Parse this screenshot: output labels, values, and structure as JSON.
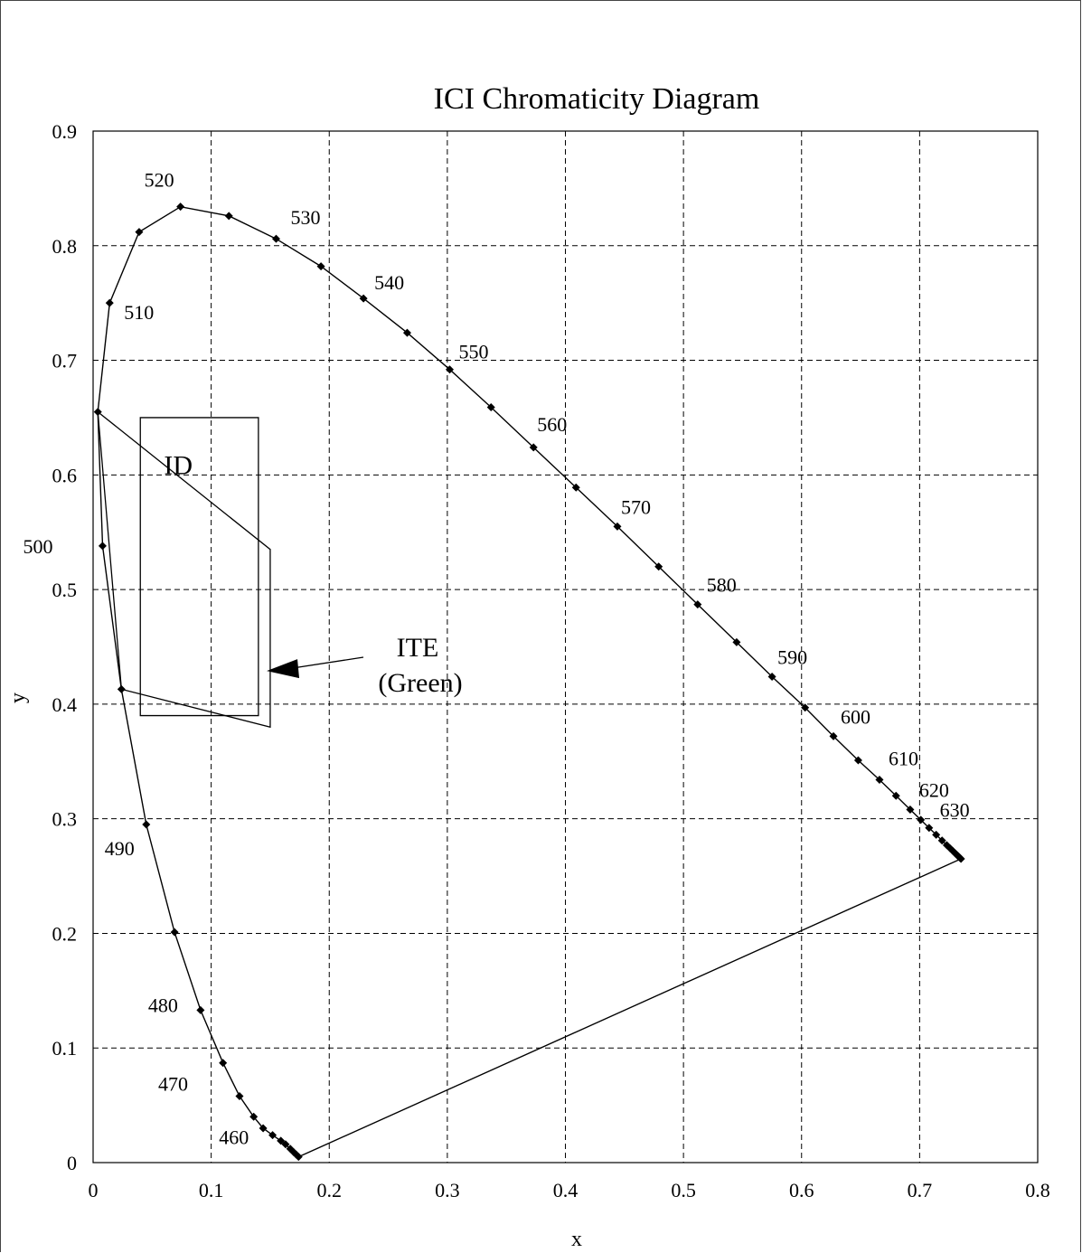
{
  "chart_data": {
    "type": "scatter",
    "title": "ICI Chromaticity Diagram",
    "xlabel": "x",
    "ylabel": "y",
    "xlim": [
      0,
      0.8
    ],
    "ylim": [
      0,
      0.9
    ],
    "xticks": [
      "0",
      "0.1",
      "0.2",
      "0.3",
      "0.4",
      "0.5",
      "0.6",
      "0.7",
      "0.8"
    ],
    "yticks": [
      "0",
      "0.1",
      "0.2",
      "0.3",
      "0.4",
      "0.5",
      "0.6",
      "0.7",
      "0.8",
      "0.9"
    ],
    "grid": true,
    "spectral_locus": [
      [
        0.174,
        0.005
      ],
      [
        0.172,
        0.007
      ],
      [
        0.17,
        0.009
      ],
      [
        0.167,
        0.012
      ],
      [
        0.163,
        0.016
      ],
      [
        0.159,
        0.019
      ],
      [
        0.152,
        0.024
      ],
      [
        0.144,
        0.03
      ],
      [
        0.136,
        0.04
      ],
      [
        0.124,
        0.058
      ],
      [
        0.11,
        0.087
      ],
      [
        0.091,
        0.133
      ],
      [
        0.069,
        0.201
      ],
      [
        0.045,
        0.295
      ],
      [
        0.024,
        0.413
      ],
      [
        0.008,
        0.538
      ],
      [
        0.004,
        0.655
      ],
      [
        0.014,
        0.75
      ],
      [
        0.039,
        0.812
      ],
      [
        0.074,
        0.834
      ],
      [
        0.115,
        0.826
      ],
      [
        0.155,
        0.806
      ],
      [
        0.193,
        0.782
      ],
      [
        0.229,
        0.754
      ],
      [
        0.266,
        0.724
      ],
      [
        0.302,
        0.692
      ],
      [
        0.337,
        0.659
      ],
      [
        0.373,
        0.624
      ],
      [
        0.409,
        0.589
      ],
      [
        0.444,
        0.555
      ],
      [
        0.479,
        0.52
      ],
      [
        0.512,
        0.487
      ],
      [
        0.545,
        0.454
      ],
      [
        0.575,
        0.424
      ],
      [
        0.603,
        0.397
      ],
      [
        0.627,
        0.372
      ],
      [
        0.648,
        0.351
      ],
      [
        0.666,
        0.334
      ],
      [
        0.68,
        0.32
      ],
      [
        0.692,
        0.308
      ],
      [
        0.701,
        0.299
      ],
      [
        0.708,
        0.292
      ],
      [
        0.714,
        0.286
      ],
      [
        0.719,
        0.281
      ],
      [
        0.723,
        0.277
      ],
      [
        0.726,
        0.274
      ],
      [
        0.728,
        0.272
      ],
      [
        0.73,
        0.27
      ],
      [
        0.731,
        0.269
      ],
      [
        0.732,
        0.268
      ],
      [
        0.733,
        0.267
      ],
      [
        0.734,
        0.266
      ],
      [
        0.735,
        0.265
      ]
    ],
    "purple_line": [
      [
        0.735,
        0.265
      ],
      [
        0.174,
        0.005
      ]
    ],
    "wavelength_labels": [
      {
        "text": "460",
        "x": 0.174,
        "y": 0.005
      },
      {
        "text": "470",
        "x": 0.124,
        "y": 0.058
      },
      {
        "text": "480",
        "x": 0.091,
        "y": 0.133
      },
      {
        "text": "490",
        "x": 0.045,
        "y": 0.295
      },
      {
        "text": "500",
        "x": 0.008,
        "y": 0.538
      },
      {
        "text": "510",
        "x": 0.014,
        "y": 0.75
      },
      {
        "text": "520",
        "x": 0.074,
        "y": 0.834
      },
      {
        "text": "530",
        "x": 0.155,
        "y": 0.806
      },
      {
        "text": "540",
        "x": 0.229,
        "y": 0.754
      },
      {
        "text": "550",
        "x": 0.302,
        "y": 0.692
      },
      {
        "text": "560",
        "x": 0.373,
        "y": 0.624
      },
      {
        "text": "570",
        "x": 0.444,
        "y": 0.555
      },
      {
        "text": "580",
        "x": 0.512,
        "y": 0.487
      },
      {
        "text": "590",
        "x": 0.575,
        "y": 0.424
      },
      {
        "text": "600",
        "x": 0.627,
        "y": 0.372
      },
      {
        "text": "610",
        "x": 0.666,
        "y": 0.334
      },
      {
        "text": "620",
        "x": 0.692,
        "y": 0.308
      },
      {
        "text": "630",
        "x": 0.714,
        "y": 0.286
      }
    ],
    "regions": [
      {
        "label": "ID",
        "polygon": [
          [
            0.04,
            0.39
          ],
          [
            0.14,
            0.39
          ],
          [
            0.14,
            0.65
          ],
          [
            0.04,
            0.65
          ]
        ]
      },
      {
        "label_lines": [
          "ITE",
          "(Green)"
        ],
        "polygon": [
          [
            0.004,
            0.655
          ],
          [
            0.15,
            0.535
          ],
          [
            0.15,
            0.38
          ],
          [
            0.024,
            0.413
          ]
        ],
        "arrow_to": [
          0.147,
          0.429
        ]
      }
    ]
  }
}
